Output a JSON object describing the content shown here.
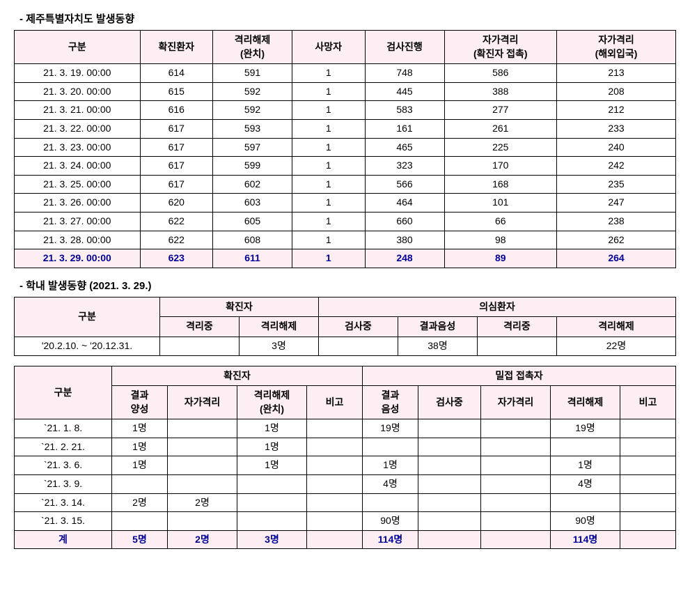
{
  "section1": {
    "title": "- 제주특별자치도 발생동향",
    "headers": [
      "구분",
      "확진환자",
      "격리해제\n(완치)",
      "사망자",
      "검사진행",
      "자가격리\n(확진자 접촉)",
      "자가격리\n(해외입국)"
    ],
    "rows": [
      [
        "21. 3. 19. 00:00",
        "614",
        "591",
        "1",
        "748",
        "586",
        "213"
      ],
      [
        "21. 3. 20. 00:00",
        "615",
        "592",
        "1",
        "445",
        "388",
        "208"
      ],
      [
        "21. 3. 21. 00:00",
        "616",
        "592",
        "1",
        "583",
        "277",
        "212"
      ],
      [
        "21. 3. 22. 00:00",
        "617",
        "593",
        "1",
        "161",
        "261",
        "233"
      ],
      [
        "21. 3. 23. 00:00",
        "617",
        "597",
        "1",
        "465",
        "225",
        "240"
      ],
      [
        "21. 3. 24. 00:00",
        "617",
        "599",
        "1",
        "323",
        "170",
        "242"
      ],
      [
        "21. 3. 25. 00:00",
        "617",
        "602",
        "1",
        "566",
        "168",
        "235"
      ],
      [
        "21. 3. 26. 00:00",
        "620",
        "603",
        "1",
        "464",
        "101",
        "247"
      ],
      [
        "21. 3. 27. 00:00",
        "622",
        "605",
        "1",
        "660",
        "66",
        "238"
      ],
      [
        "21. 3. 28. 00:00",
        "622",
        "608",
        "1",
        "380",
        "98",
        "262"
      ]
    ],
    "highlightRow": [
      "21. 3. 29. 00:00",
      "623",
      "611",
      "1",
      "248",
      "89",
      "264"
    ]
  },
  "section2": {
    "title": "- 학내 발생동향 (2021. 3. 29.)",
    "group1": "확진자",
    "group2": "의심환자",
    "headers": [
      "구분",
      "격리중",
      "격리해제",
      "검사중",
      "결과음성",
      "격리중",
      "격리해제"
    ],
    "row": [
      "'20.2.10. ~ '20.12.31.",
      "",
      "3명",
      "",
      "38명",
      "",
      "22명"
    ]
  },
  "section3": {
    "group1": "확진자",
    "group2": "밀접 접촉자",
    "headers": [
      "구분",
      "결과\n양성",
      "자가격리",
      "격리해제\n(완치)",
      "비고",
      "결과\n음성",
      "검사중",
      "자가격리",
      "격리해제",
      "비고"
    ],
    "rows": [
      [
        "`21.  1.  8.",
        "1명",
        "",
        "1명",
        "",
        "19명",
        "",
        "",
        "19명",
        ""
      ],
      [
        "`21.  2. 21.",
        "1명",
        "",
        "1명",
        "",
        "",
        "",
        "",
        "",
        ""
      ],
      [
        "`21.  3.  6.",
        "1명",
        "",
        "1명",
        "",
        "1명",
        "",
        "",
        "1명",
        ""
      ],
      [
        "`21.  3.  9.",
        "",
        "",
        "",
        "",
        "4명",
        "",
        "",
        "4명",
        ""
      ],
      [
        "`21.  3. 14.",
        "2명",
        "2명",
        "",
        "",
        "",
        "",
        "",
        "",
        ""
      ],
      [
        "`21.  3. 15.",
        "",
        "",
        "",
        "",
        "90명",
        "",
        "",
        "90명",
        ""
      ]
    ],
    "highlightRow": [
      "계",
      "5명",
      "2명",
      "3명",
      "",
      "114명",
      "",
      "",
      "114명",
      ""
    ]
  },
  "style": {
    "headerBg": "#fdeef4",
    "highlightColor": "#000099",
    "borderColor": "#000000",
    "bgColor": "#ffffff",
    "textColor": "#000000",
    "fontSize": 14
  }
}
